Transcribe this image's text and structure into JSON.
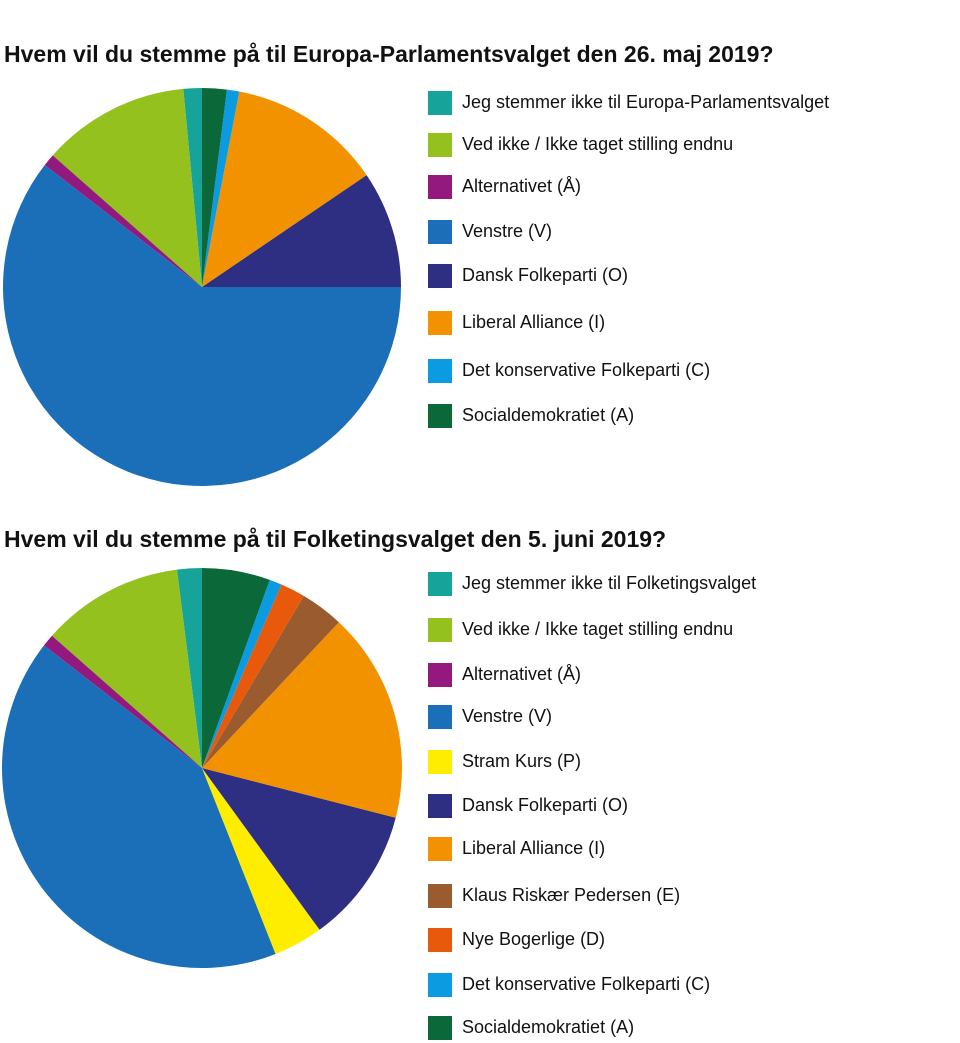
{
  "chart_data": [
    {
      "type": "pie",
      "title": "Hvem vil du stemme på til Europa-Parlamentsvalget den 26. maj 2019?",
      "categories": [
        "Jeg stemmer ikke til Europa-Parlamentsvalget",
        "Ved ikke / Ikke taget stilling endnu",
        "Alternativet (Å)",
        "Venstre (V)",
        "Dansk Folkeparti (O)",
        "Liberal Alliance (I)",
        "Det konservative Folkeparti (C)",
        "Socialdemokratiet (A)"
      ],
      "values": [
        1.5,
        12,
        1,
        60.5,
        9.5,
        12.5,
        1,
        2
      ],
      "colors": [
        "#16a39a",
        "#95c11f",
        "#93197f",
        "#1a6fb8",
        "#2e2f82",
        "#f39200",
        "#0a9be0",
        "#0b6838"
      ]
    },
    {
      "type": "pie",
      "title": "Hvem vil du stemme på til Folketingsvalget den 5. juni 2019?",
      "categories": [
        "Jeg stemmer ikke til Folketingsvalget",
        "Ved ikke / Ikke taget stilling endnu",
        "Alternativet (Å)",
        "Venstre (V)",
        "Stram Kurs (P)",
        "Dansk Folkeparti (O)",
        "Liberal Alliance (I)",
        "Klaus Riskær Pedersen (E)",
        "Nye Bogerlige (D)",
        "Det konservative Folkeparti (C)",
        "Socialdemokratiet (A)"
      ],
      "values": [
        2,
        11.5,
        1,
        41.5,
        4,
        11,
        17,
        3.5,
        2,
        1,
        5.5
      ],
      "colors": [
        "#16a39a",
        "#95c11f",
        "#93197f",
        "#1a6fb8",
        "#ffed00",
        "#2e2f82",
        "#f39200",
        "#9a5b2f",
        "#e8590c",
        "#0a9be0",
        "#0b6838"
      ]
    }
  ]
}
